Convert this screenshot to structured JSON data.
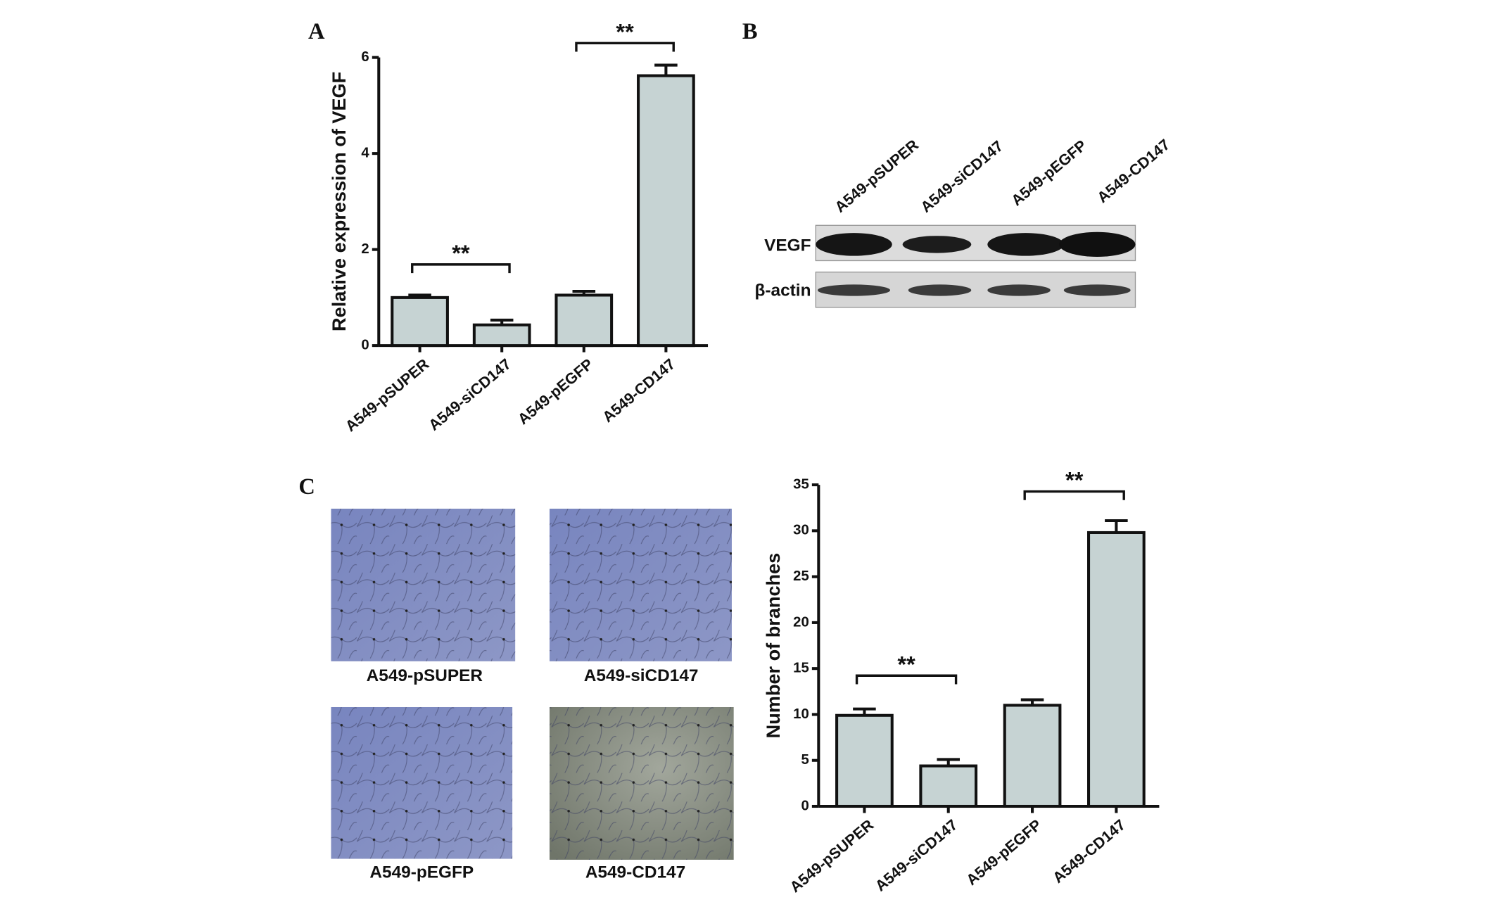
{
  "chart_data": [
    {
      "type": "bar",
      "ylabel": "Relative expression of VEGF",
      "categories": [
        "A549-pSUPER",
        "A549-siCD147",
        "A549-pEGFP",
        "A549-CD147"
      ],
      "values": [
        1.0,
        0.43,
        1.05,
        5.62
      ],
      "errors": [
        0.05,
        0.1,
        0.08,
        0.22
      ],
      "color": "#c6d3d3",
      "ylim": [
        0,
        6
      ],
      "yticks": [
        0,
        2,
        4,
        6
      ],
      "annotations": [
        "**",
        "**"
      ]
    },
    {
      "type": "bar",
      "ylabel": "Number of branches",
      "categories": [
        "A549-pSUPER",
        "A549-siCD147",
        "A549-pEGFP",
        "A549-CD147"
      ],
      "values": [
        9.9,
        4.4,
        11.0,
        29.8
      ],
      "errors": [
        0.7,
        0.7,
        0.6,
        1.3
      ],
      "color": "#c6d3d3",
      "ylim": [
        0,
        35
      ],
      "yticks": [
        0,
        5,
        10,
        15,
        20,
        25,
        30,
        35
      ],
      "annotations": [
        "**",
        "**"
      ]
    }
  ],
  "panel_labels": [
    "A",
    "B",
    "C"
  ],
  "blot": {
    "lanes": [
      "A549-pSUPER",
      "A549-siCD147",
      "A549-pEGFP",
      "A549-CD147"
    ],
    "rows": [
      "VEGF",
      "β-actin"
    ]
  },
  "micrographs": {
    "labels": [
      "A549-pSUPER",
      "A549-siCD147",
      "A549-pEGFP",
      "A549-CD147"
    ]
  }
}
